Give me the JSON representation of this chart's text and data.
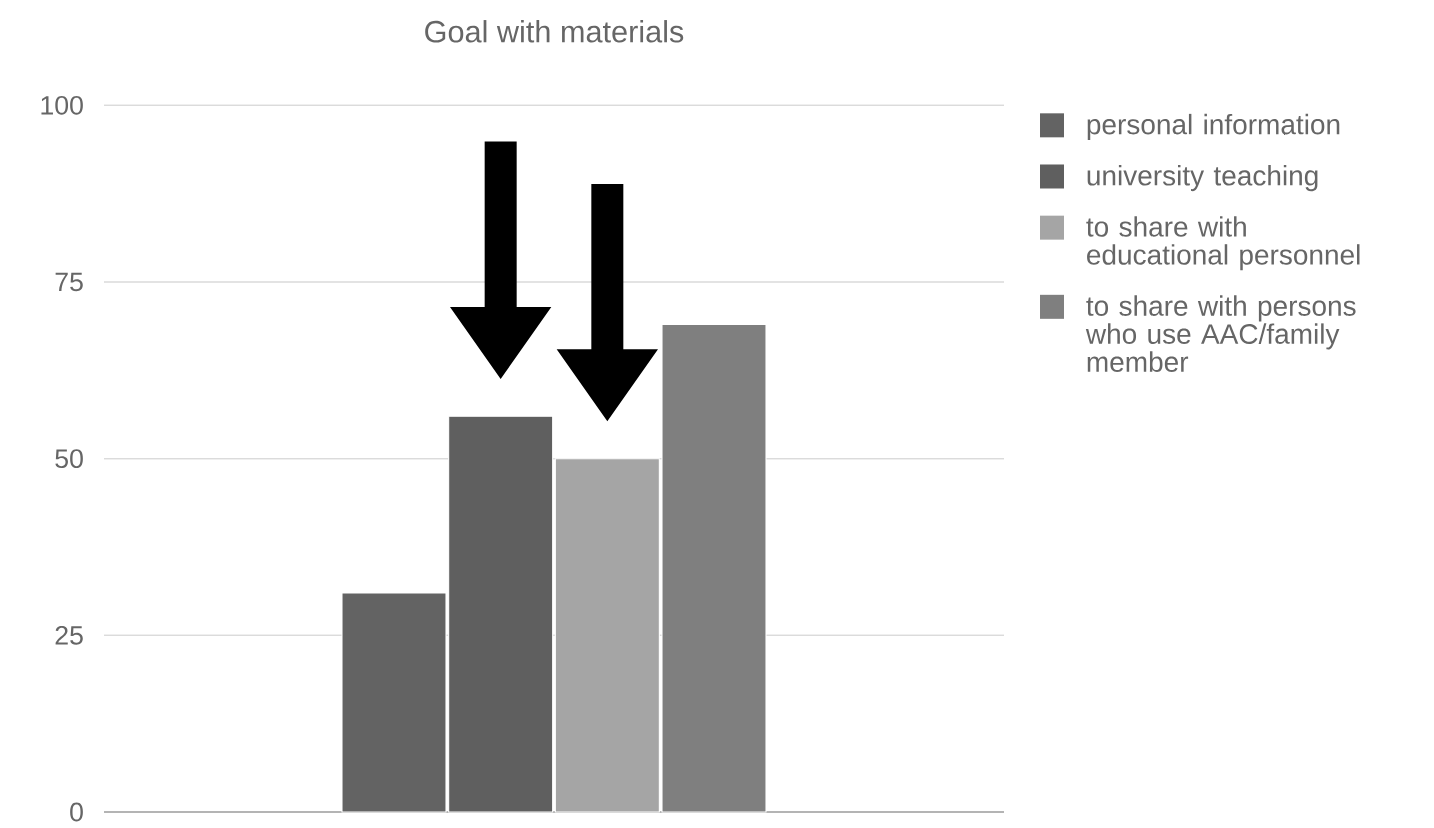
{
  "chart_data": {
    "type": "bar",
    "title": "Goal with materials",
    "categories": [
      null
    ],
    "series": [
      {
        "name": "personal information",
        "color": "#636363",
        "values": [
          31
        ]
      },
      {
        "name": "university teaching",
        "color": "#5f5f5f",
        "values": [
          56
        ]
      },
      {
        "name": "to share with educational personnel",
        "color": "#a5a5a5",
        "values": [
          50
        ]
      },
      {
        "name": "to share with persons who use AAC/family member",
        "color": "#7f7f7f",
        "values": [
          69
        ]
      }
    ],
    "ylim": [
      0,
      100
    ],
    "yticks": [
      0,
      25,
      50,
      75,
      100
    ],
    "grid": "y",
    "legend": "right"
  }
}
